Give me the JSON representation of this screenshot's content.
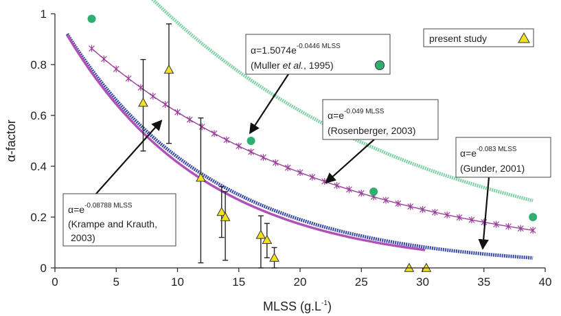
{
  "chart_data": {
    "type": "scatter",
    "xlabel": "MLSS (g.L",
    "xlabel_sup": "-1",
    "xlabel_end": ")",
    "ylabel": "α-factor",
    "xlim": [
      0,
      40
    ],
    "ylim": [
      0,
      1
    ],
    "x_ticks": [
      0,
      5,
      10,
      15,
      20,
      25,
      30,
      35,
      40
    ],
    "y_ticks": [
      0,
      0.2,
      0.4,
      0.6,
      0.8,
      1
    ],
    "grid": false,
    "legend": {
      "label": "present study",
      "placement": "top-right",
      "marker": "triangle"
    },
    "colors": {
      "muller": "#7fcfa6",
      "muller_point": "#2fae72",
      "rosenberger": "#9a3f9a",
      "gunder": "#3848a8",
      "krampe": "#b050b8",
      "present_fill": "#f0e020",
      "present_stroke": "#333333"
    },
    "curves": [
      {
        "key": "muller",
        "a": 1.5074,
        "k": 0.0446,
        "x_range": [
          3,
          39
        ],
        "style": "thick-dotted"
      },
      {
        "key": "rosenberger",
        "a": 1.0,
        "k": 0.049,
        "x_range": [
          3,
          39
        ],
        "style": "star-markers"
      },
      {
        "key": "gunder",
        "a": 1.0,
        "k": 0.083,
        "x_range": [
          1,
          39
        ],
        "style": "thick-dotted"
      },
      {
        "key": "krampe",
        "a": 1.0,
        "k": 0.08788,
        "x_range": [
          1,
          30.2
        ],
        "style": "solid"
      }
    ],
    "muller_points": [
      {
        "x": 3,
        "y": 0.98
      },
      {
        "x": 16,
        "y": 0.5
      },
      {
        "x": 26,
        "y": 0.3
      },
      {
        "x": 39,
        "y": 0.2
      }
    ],
    "present_study": [
      {
        "x": 7.2,
        "y": 0.65,
        "lo": 0.46,
        "hi": 0.82
      },
      {
        "x": 9.3,
        "y": 0.78,
        "lo": 0.49,
        "hi": 0.96
      },
      {
        "x": 11.9,
        "y": 0.355,
        "lo": 0.02,
        "hi": 0.59
      },
      {
        "x": 13.6,
        "y": 0.22,
        "lo": 0.12,
        "hi": 0.32
      },
      {
        "x": 13.9,
        "y": 0.2,
        "lo": 0.03,
        "hi": 0.3
      },
      {
        "x": 16.8,
        "y": 0.13,
        "lo": 0.0,
        "hi": 0.205
      },
      {
        "x": 17.3,
        "y": 0.11,
        "lo": 0.04,
        "hi": 0.175
      },
      {
        "x": 17.9,
        "y": 0.04,
        "lo": 0.0,
        "hi": 0.08
      },
      {
        "x": 28.9,
        "y": 0.0
      },
      {
        "x": 30.3,
        "y": 0.0
      }
    ],
    "annotations": [
      {
        "key": "muller",
        "line1_pre": "α=1.5074e",
        "line1_sup": "-0.0446 MLSS",
        "line2_pre": "(Muller ",
        "line2_it": "et al.",
        "line2_post": ", 1995)",
        "arrow_to": [
          15.9,
          0.53
        ]
      },
      {
        "key": "rosenberger",
        "line1_pre": "α=e",
        "line1_sup": "-0.049 MLSS",
        "line2_pre": "(Rosenberger, 2003)",
        "arrow_to": [
          22.1,
          0.335
        ]
      },
      {
        "key": "gunder",
        "line1_pre": "α=e",
        "line1_sup": "-0.083 MLSS",
        "line2_pre": "(Gunder, 2001)",
        "arrow_to": [
          34.9,
          0.075
        ]
      },
      {
        "key": "krampe",
        "line1_pre": "α=e",
        "line1_sup": "-0.08788 MLSS",
        "line2_pre": "(Krampe and Krauth,",
        "line3_pre": "2003)",
        "arrow_to": [
          8.7,
          0.58
        ]
      }
    ]
  }
}
